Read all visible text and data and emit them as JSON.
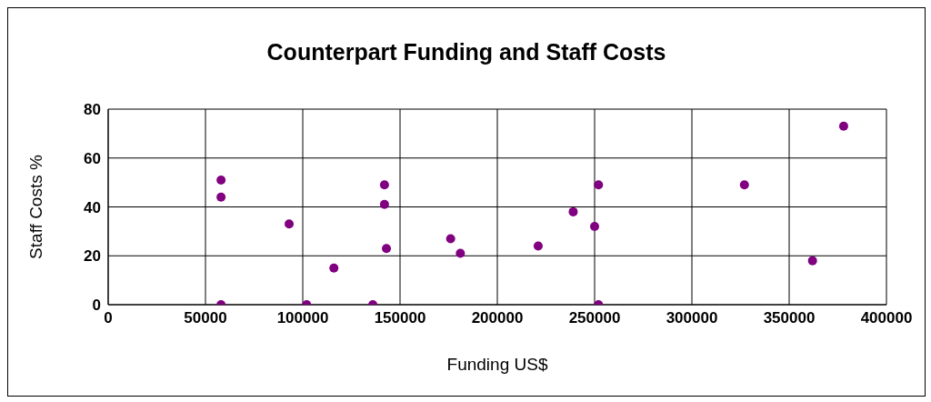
{
  "chart_data": {
    "type": "scatter",
    "title": "Counterpart Funding and Staff Costs",
    "xlabel": "Funding US$",
    "ylabel": "Staff Costs %",
    "x": [
      58000,
      58000,
      58000,
      93000,
      102000,
      116000,
      136000,
      142000,
      142000,
      143000,
      176000,
      181000,
      221000,
      239000,
      250000,
      252000,
      252000,
      327000,
      362000,
      378000
    ],
    "values": [
      51,
      44,
      0,
      33,
      0,
      15,
      0,
      49,
      41,
      23,
      27,
      21,
      24,
      38,
      32,
      49,
      0,
      49,
      18,
      73
    ],
    "color": "#800080",
    "marker": "circle",
    "xlim": [
      0,
      400000
    ],
    "xticks": [
      0,
      50000,
      100000,
      150000,
      200000,
      250000,
      300000,
      350000,
      400000
    ],
    "ylim": [
      0,
      80
    ],
    "yticks": [
      0,
      20,
      40,
      60,
      80
    ],
    "grid": true,
    "legend": false
  }
}
